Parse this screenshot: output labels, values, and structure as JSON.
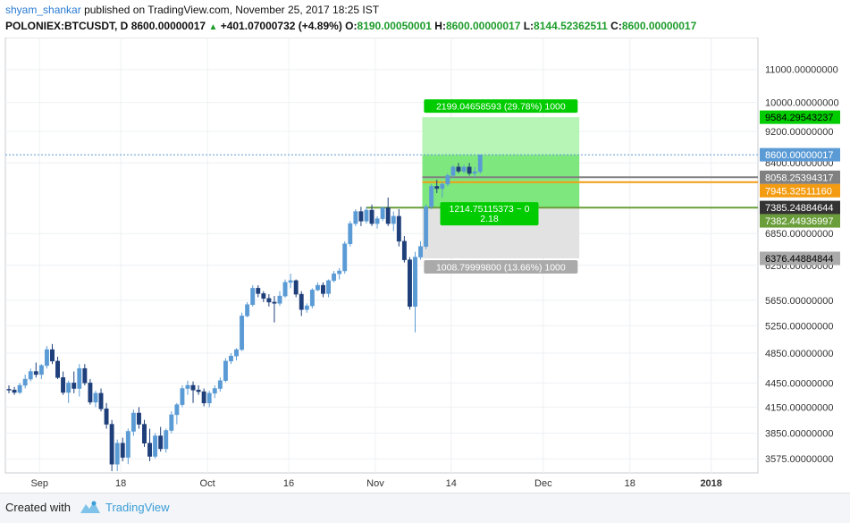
{
  "header": {
    "author": "shyam_shankar",
    "published_text": "published on TradingView.com, November 25, 2017 18:25 IST",
    "symbol": "POLONIEX:BTCUSDT, D",
    "last": "8600.00000017",
    "change": "+401.07000732 (+4.89%)",
    "o_label": "O:",
    "o": "8190.00050001",
    "h_label": "H:",
    "h": "8600.00000017",
    "l_label": "L:",
    "l": "8144.52362511",
    "c_label": "C:",
    "c": "8600.00000017"
  },
  "footer": {
    "created_with": "Created with",
    "brand": "TradingView"
  },
  "colors": {
    "up": "#5b9bd5",
    "down": "#1f3f7a",
    "green_zone": "#7ee87e",
    "grey_zone": "#d8d8d8",
    "orange": "#f39c12",
    "green_line": "#6a9e3a",
    "accent_green": "#00cc00"
  },
  "chart_data": {
    "type": "candlestick",
    "scale": "log",
    "ylim": [
      3450,
      12000
    ],
    "y_ticks": [
      "11000.00000000",
      "10000.00000000",
      "9200.00000000",
      "8400.00000000",
      "6850.00000000",
      "6250.00000000",
      "5650.00000000",
      "5250.00000000",
      "4850.00000000",
      "4450.00000000",
      "4150.00000000",
      "3850.00000000",
      "3575.00000000"
    ],
    "x_ticks": [
      "Sep",
      "18",
      "Oct",
      "16",
      "Nov",
      "14",
      "Dec",
      "18",
      "2018"
    ],
    "bars_per_day": 1,
    "candles": [
      [
        4370,
        4420,
        4320,
        4360
      ],
      [
        4360,
        4400,
        4300,
        4330
      ],
      [
        4330,
        4450,
        4310,
        4420
      ],
      [
        4420,
        4560,
        4380,
        4500
      ],
      [
        4500,
        4640,
        4470,
        4600
      ],
      [
        4600,
        4720,
        4520,
        4560
      ],
      [
        4560,
        4700,
        4500,
        4680
      ],
      [
        4680,
        4950,
        4640,
        4900
      ],
      [
        4900,
        4980,
        4700,
        4740
      ],
      [
        4740,
        4800,
        4500,
        4520
      ],
      [
        4520,
        4600,
        4300,
        4330
      ],
      [
        4330,
        4480,
        4200,
        4450
      ],
      [
        4450,
        4600,
        4320,
        4380
      ],
      [
        4380,
        4700,
        4280,
        4640
      ],
      [
        4640,
        4700,
        4420,
        4450
      ],
      [
        4450,
        4500,
        4180,
        4210
      ],
      [
        4210,
        4350,
        4150,
        4320
      ],
      [
        4320,
        4380,
        4100,
        4130
      ],
      [
        4130,
        4200,
        3900,
        3950
      ],
      [
        3950,
        4000,
        3450,
        3520
      ],
      [
        3520,
        3780,
        3450,
        3740
      ],
      [
        3740,
        3800,
        3550,
        3590
      ],
      [
        3590,
        3900,
        3520,
        3870
      ],
      [
        3870,
        4120,
        3820,
        4080
      ],
      [
        4080,
        4150,
        3900,
        3950
      ],
      [
        3950,
        4000,
        3700,
        3740
      ],
      [
        3740,
        3900,
        3550,
        3600
      ],
      [
        3600,
        3850,
        3580,
        3820
      ],
      [
        3820,
        3920,
        3650,
        3680
      ],
      [
        3680,
        3900,
        3640,
        3880
      ],
      [
        3880,
        4100,
        3850,
        4060
      ],
      [
        4060,
        4200,
        3950,
        4180
      ],
      [
        4180,
        4420,
        4150,
        4380
      ],
      [
        4380,
        4480,
        4300,
        4420
      ],
      [
        4420,
        4470,
        4200,
        4360
      ],
      [
        4360,
        4420,
        4300,
        4340
      ],
      [
        4340,
        4380,
        4160,
        4200
      ],
      [
        4200,
        4350,
        4150,
        4320
      ],
      [
        4320,
        4420,
        4260,
        4380
      ],
      [
        4380,
        4520,
        4340,
        4480
      ],
      [
        4480,
        4780,
        4460,
        4740
      ],
      [
        4740,
        4850,
        4700,
        4810
      ],
      [
        4810,
        4920,
        4750,
        4900
      ],
      [
        4900,
        5450,
        4880,
        5400
      ],
      [
        5400,
        5620,
        5380,
        5580
      ],
      [
        5580,
        5900,
        5550,
        5850
      ],
      [
        5850,
        5900,
        5700,
        5760
      ],
      [
        5760,
        5800,
        5620,
        5680
      ],
      [
        5680,
        5750,
        5550,
        5620
      ],
      [
        5620,
        5720,
        5300,
        5600
      ],
      [
        5600,
        5800,
        5560,
        5720
      ],
      [
        5720,
        6000,
        5690,
        5950
      ],
      [
        5950,
        6100,
        5850,
        5980
      ],
      [
        5980,
        6000,
        5700,
        5750
      ],
      [
        5750,
        5800,
        5400,
        5500
      ],
      [
        5500,
        5600,
        5450,
        5560
      ],
      [
        5560,
        5850,
        5520,
        5820
      ],
      [
        5820,
        5950,
        5800,
        5900
      ],
      [
        5900,
        5950,
        5700,
        5760
      ],
      [
        5760,
        6000,
        5700,
        5980
      ],
      [
        5980,
        6150,
        5950,
        6100
      ],
      [
        6100,
        6200,
        6000,
        6150
      ],
      [
        6150,
        6700,
        6100,
        6650
      ],
      [
        6650,
        7100,
        6600,
        7050
      ],
      [
        7050,
        7350,
        7000,
        7300
      ],
      [
        7300,
        7400,
        7000,
        7100
      ],
      [
        7100,
        7400,
        7050,
        7330
      ],
      [
        7330,
        7450,
        7000,
        7050
      ],
      [
        7050,
        7200,
        6950,
        7150
      ],
      [
        7150,
        7400,
        7100,
        7380
      ],
      [
        7380,
        7600,
        7000,
        7050
      ],
      [
        7050,
        7300,
        6900,
        7200
      ],
      [
        7200,
        7350,
        6600,
        6700
      ],
      [
        6700,
        6800,
        6300,
        6350
      ],
      [
        6350,
        6400,
        5500,
        5550
      ],
      [
        5550,
        6500,
        5150,
        6400
      ],
      [
        6400,
        6700,
        6350,
        6600
      ],
      [
        6600,
        7450,
        6550,
        7400
      ],
      [
        7400,
        7900,
        7350,
        7850
      ],
      [
        7850,
        8000,
        7700,
        7800
      ],
      [
        7800,
        7950,
        7600,
        7900
      ],
      [
        7900,
        8150,
        7850,
        8100
      ],
      [
        8100,
        8350,
        8050,
        8300
      ],
      [
        8300,
        8400,
        8150,
        8200
      ],
      [
        8200,
        8350,
        8150,
        8300
      ],
      [
        8300,
        8400,
        8100,
        8150
      ],
      [
        8150,
        8300,
        8050,
        8190
      ],
      [
        8190,
        8600,
        8144,
        8600
      ]
    ],
    "long_position": {
      "profit_label": "2199.04658593 (29.78%) 1000",
      "loss_label": "1008.79999800 (13.66%) 1000",
      "center_label_line1": "1214.75115373 ~ 0",
      "center_label_line2": "2.18",
      "entry": 7385.24884644,
      "target": 9584.29543237,
      "stop": 6376.44884844,
      "start_bar": 75,
      "end_bar": 103
    },
    "price_labels": [
      {
        "value": 9584.29543237,
        "text": "9584.29543237",
        "bg": "#00cc00",
        "fg": "#000000"
      },
      {
        "value": 8600.00000017,
        "text": "8600.00000017",
        "bg": "#5b9bd5",
        "fg": "#ffffff"
      },
      {
        "value": 8058.25394317,
        "text": "8058.25394317",
        "bg": "#808080",
        "fg": "#ffffff"
      },
      {
        "value": 7945.3251116,
        "text": "7945.32511160",
        "bg": "#f39c12",
        "fg": "#ffffff"
      },
      {
        "value": 7382.44936997,
        "text": "7382.44936997",
        "bg": "#6a9e3a",
        "fg": "#ffffff"
      },
      {
        "value": 7385.24884644,
        "text": "7385.24884644",
        "bg": "#333333",
        "fg": "#ffffff"
      },
      {
        "value": 6376.44884844,
        "text": "6376.44884844",
        "bg": "#aaaaaa",
        "fg": "#000000"
      }
    ],
    "horizontal_lines": [
      {
        "value": 8058.25394317,
        "color": "#808080"
      },
      {
        "value": 7945.3251116,
        "color": "#f39c12"
      },
      {
        "value": 7382.44936997,
        "color": "#6a9e3a"
      }
    ]
  }
}
